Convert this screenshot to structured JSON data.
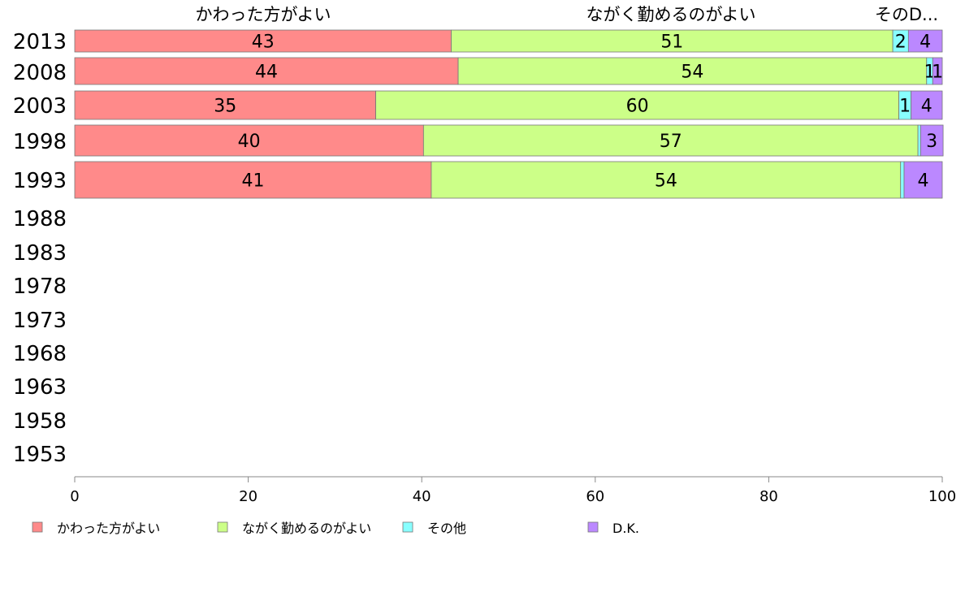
{
  "chart_data": {
    "type": "bar",
    "orientation": "horizontal",
    "stacked": true,
    "categories": [
      "2013",
      "2008",
      "2003",
      "1998",
      "1993",
      "1988",
      "1983",
      "1978",
      "1973",
      "1968",
      "1963",
      "1958",
      "1953"
    ],
    "series": [
      {
        "name": "かわった方がよい",
        "color": "#ff8a8a",
        "values": [
          43.4,
          44.2,
          34.7,
          40.2,
          41.1,
          null,
          null,
          null,
          null,
          null,
          null,
          null,
          null
        ],
        "labels": [
          "43",
          "44",
          "35",
          "40",
          "41",
          "",
          "",
          "",
          "",
          "",
          "",
          "",
          ""
        ]
      },
      {
        "name": "ながく勤めるのがよい",
        "color": "#ccff88",
        "values": [
          50.9,
          54.0,
          60.3,
          57.0,
          54.1,
          null,
          null,
          null,
          null,
          null,
          null,
          null,
          null
        ],
        "labels": [
          "51",
          "54",
          "60",
          "57",
          "54",
          "",
          "",
          "",
          "",
          "",
          "",
          "",
          ""
        ]
      },
      {
        "name": "その他",
        "color": "#88ffff",
        "values": [
          1.8,
          0.7,
          1.4,
          0.3,
          0.4,
          null,
          null,
          null,
          null,
          null,
          null,
          null,
          null
        ],
        "labels": [
          "2",
          "1",
          "1",
          "",
          "",
          "",
          "",
          "",
          "",
          "",
          "",
          "",
          ""
        ]
      },
      {
        "name": "D.K.",
        "color": "#bb88ff",
        "values": [
          3.9,
          1.1,
          3.6,
          2.6,
          4.4,
          null,
          null,
          null,
          null,
          null,
          null,
          null,
          null
        ],
        "labels": [
          "4",
          "1",
          "4",
          "3",
          "4",
          "",
          "",
          "",
          "",
          "",
          "",
          "",
          ""
        ]
      }
    ],
    "top_labels": [
      "かわった方がよい",
      "ながく勤めるのがよい",
      "そのD..."
    ],
    "xlim": [
      0,
      100
    ],
    "xticks": [
      "0",
      "20",
      "40",
      "60",
      "80",
      "100"
    ],
    "legend_position": "bottom",
    "grid": false
  }
}
